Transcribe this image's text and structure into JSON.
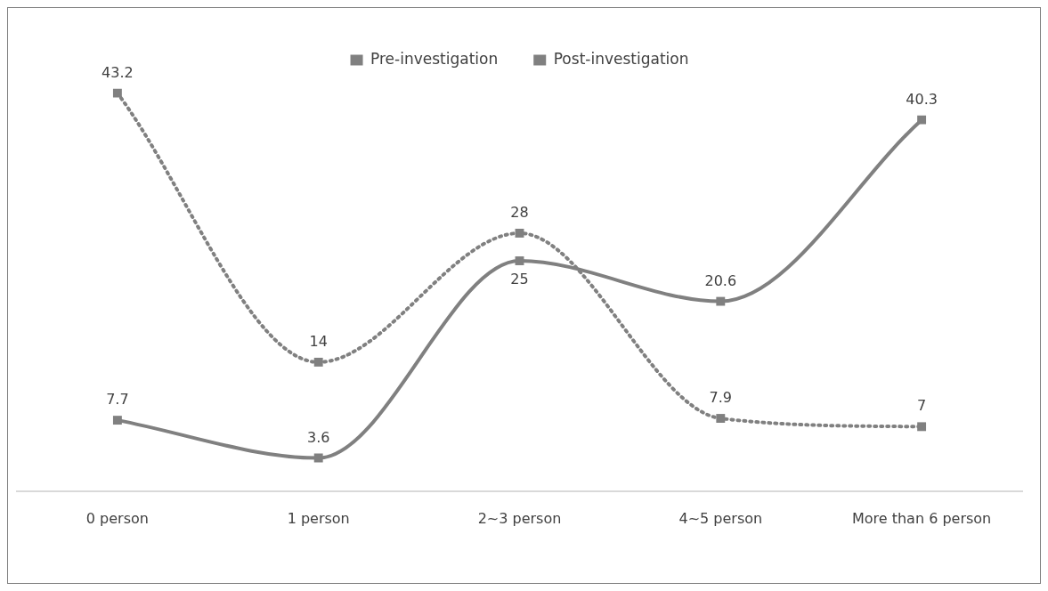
{
  "chart_data": {
    "type": "line",
    "categories": [
      "0 person",
      "1 person",
      "2~3 person",
      "4~5 person",
      "More than 6 person"
    ],
    "series": [
      {
        "name": "Pre-investigation",
        "color": "#808080",
        "line_style": "dotted",
        "values": [
          43.2,
          14,
          28,
          7.9,
          7
        ]
      },
      {
        "name": "Post-investigation",
        "color": "#808080",
        "line_style": "solid",
        "values": [
          7.7,
          3.6,
          25,
          20.6,
          40.3
        ]
      }
    ],
    "marker": "square",
    "data_labels": true,
    "legend": "top",
    "grid": false,
    "tick_labels": "x"
  }
}
